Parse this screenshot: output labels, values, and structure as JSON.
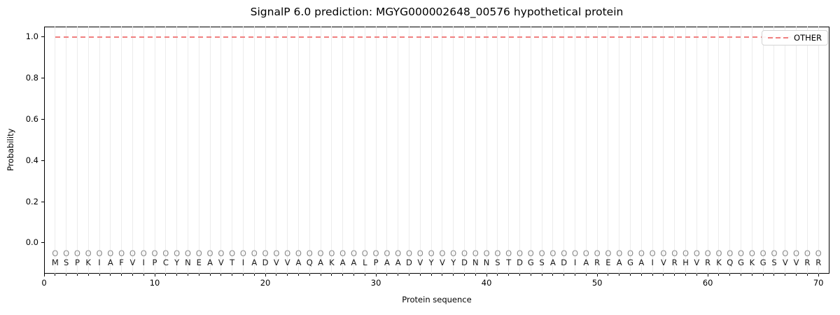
{
  "chart_data": {
    "type": "line",
    "title": "SignalP 6.0 prediction: MGYG000002648_00576 hypothetical protein",
    "xlabel": "Protein sequence",
    "ylabel": "Probability",
    "xlim": [
      0,
      71
    ],
    "ylim": [
      -0.15,
      1.05
    ],
    "xticks": [
      0,
      10,
      20,
      30,
      40,
      50,
      60,
      70
    ],
    "yticks": [
      0.0,
      0.2,
      0.4,
      0.6,
      0.8,
      1.0
    ],
    "grid": {
      "vertical_line_per_residue": true,
      "horizontal": false
    },
    "legend": {
      "position": "upper-right",
      "entries": [
        {
          "label": "OTHER",
          "color": "#f08080",
          "linestyle": "dashed"
        }
      ]
    },
    "series": [
      {
        "name": "OTHER",
        "color": "#f08080",
        "linestyle": "dashed",
        "x_start": 1,
        "x_end": 70,
        "constant_y": 1.0,
        "values": [
          1.0,
          1.0,
          1.0,
          1.0,
          1.0,
          1.0,
          1.0,
          1.0,
          1.0,
          1.0,
          1.0,
          1.0,
          1.0,
          1.0,
          1.0,
          1.0,
          1.0,
          1.0,
          1.0,
          1.0,
          1.0,
          1.0,
          1.0,
          1.0,
          1.0,
          1.0,
          1.0,
          1.0,
          1.0,
          1.0,
          1.0,
          1.0,
          1.0,
          1.0,
          1.0,
          1.0,
          1.0,
          1.0,
          1.0,
          1.0,
          1.0,
          1.0,
          1.0,
          1.0,
          1.0,
          1.0,
          1.0,
          1.0,
          1.0,
          1.0,
          1.0,
          1.0,
          1.0,
          1.0,
          1.0,
          1.0,
          1.0,
          1.0,
          1.0,
          1.0,
          1.0,
          1.0,
          1.0,
          1.0,
          1.0,
          1.0,
          1.0,
          1.0,
          1.0,
          1.0
        ]
      }
    ],
    "sequence": "MSPKIAFVIPCYNEAVTIADVVAQAKAALPAADVYVYDNNSTDGSADIAREAGAIVRHVRKQGKGSVVRR",
    "per_residue_label": "O",
    "colors": {
      "other_line": "#f08080",
      "grid": "#ececec",
      "residue_letter": "#1a1a1a",
      "residue_region_label": "#8c8c8c",
      "spine": "#000000",
      "legend_border": "#d4d4d4"
    }
  }
}
